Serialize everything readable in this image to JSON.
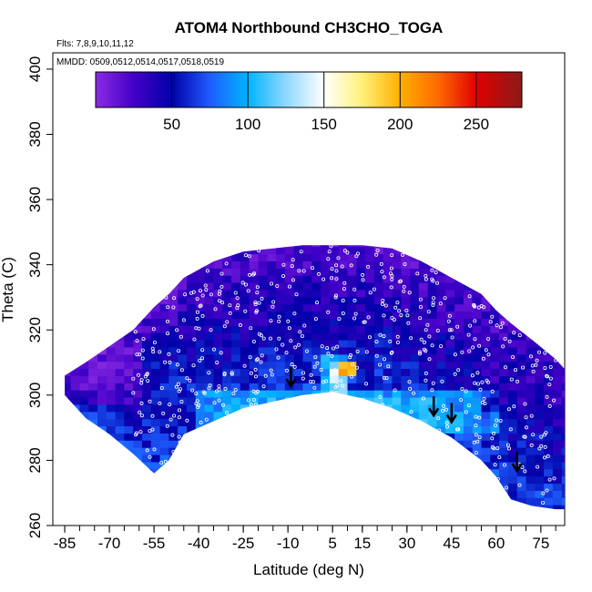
{
  "chart_data": {
    "type": "heatmap",
    "title": "ATOM4 Northbound CH3CHO_TOGA",
    "subtitle_flights": "Flts: 7,8,9,10,11,12",
    "subtitle_dates": "MMDD: 0509,0512,0514,0517,0518,0519",
    "xlabel": "Latitude (deg N)",
    "ylabel": "Theta (C)",
    "xlim": [
      -89,
      83
    ],
    "ylim": [
      260,
      405
    ],
    "x_ticks": [
      -85,
      -70,
      -55,
      -40,
      -25,
      -10,
      5,
      15,
      30,
      45,
      60,
      75
    ],
    "x_tick_labels": [
      "-85",
      "-70",
      "-55",
      "-40",
      "-25",
      "-10",
      "5",
      "15",
      "30",
      "45",
      "60",
      "75"
    ],
    "y_ticks": [
      260,
      280,
      300,
      320,
      340,
      360,
      380,
      400
    ],
    "y_tick_labels": [
      "260",
      "280",
      "300",
      "320",
      "340",
      "360",
      "380",
      "400"
    ],
    "colorbar": {
      "range": [
        0,
        280
      ],
      "ticks": [
        50,
        100,
        150,
        200,
        250
      ],
      "tick_labels": [
        "50",
        "100",
        "150",
        "200",
        "250"
      ],
      "stops": [
        {
          "v": 0,
          "c": "#8a2be2"
        },
        {
          "v": 25,
          "c": "#4400c8"
        },
        {
          "v": 50,
          "c": "#0000a8"
        },
        {
          "v": 75,
          "c": "#1f5cff"
        },
        {
          "v": 100,
          "c": "#00b4ff"
        },
        {
          "v": 125,
          "c": "#8fd8ff"
        },
        {
          "v": 150,
          "c": "#ffffff"
        },
        {
          "v": 175,
          "c": "#fff07a"
        },
        {
          "v": 200,
          "c": "#ffb000"
        },
        {
          "v": 225,
          "c": "#ff6a00"
        },
        {
          "v": 250,
          "c": "#e00000"
        },
        {
          "v": 280,
          "c": "#8b1a1a"
        }
      ]
    },
    "field_envelope": [
      {
        "lat": -85,
        "top": 306,
        "bottom": 300
      },
      {
        "lat": -78,
        "top": 310,
        "bottom": 293
      },
      {
        "lat": -70,
        "top": 315,
        "bottom": 288
      },
      {
        "lat": -62,
        "top": 320,
        "bottom": 282
      },
      {
        "lat": -55,
        "top": 327,
        "bottom": 276
      },
      {
        "lat": -50,
        "top": 331,
        "bottom": 280
      },
      {
        "lat": -45,
        "top": 336,
        "bottom": 288
      },
      {
        "lat": -35,
        "top": 341,
        "bottom": 292
      },
      {
        "lat": -25,
        "top": 344,
        "bottom": 296
      },
      {
        "lat": -15,
        "top": 345,
        "bottom": 298
      },
      {
        "lat": -5,
        "top": 346,
        "bottom": 300
      },
      {
        "lat": 5,
        "top": 346,
        "bottom": 301
      },
      {
        "lat": 15,
        "top": 346,
        "bottom": 299
      },
      {
        "lat": 25,
        "top": 345,
        "bottom": 296
      },
      {
        "lat": 35,
        "top": 341,
        "bottom": 292
      },
      {
        "lat": 45,
        "top": 336,
        "bottom": 287
      },
      {
        "lat": 55,
        "top": 331,
        "bottom": 280
      },
      {
        "lat": 60,
        "top": 326,
        "bottom": 275
      },
      {
        "lat": 65,
        "top": 322,
        "bottom": 268
      },
      {
        "lat": 72,
        "top": 317,
        "bottom": 266
      },
      {
        "lat": 80,
        "top": 311,
        "bottom": 265
      },
      {
        "lat": 83,
        "top": 308,
        "bottom": 265
      }
    ],
    "features": [
      {
        "lat_min": -60,
        "lat_max": -40,
        "theta_min": 286,
        "theta_max": 320,
        "value": 55
      },
      {
        "lat_min": -40,
        "lat_max": 60,
        "theta_min": 288,
        "theta_max": 302,
        "value": 115
      },
      {
        "lat_min": 2,
        "lat_max": 10,
        "theta_min": 300,
        "theta_max": 312,
        "value": 140
      },
      {
        "lat_min": 6,
        "lat_max": 14,
        "theta_min": 306,
        "theta_max": 311,
        "value": 230
      },
      {
        "lat_min": -85,
        "lat_max": -58,
        "theta_min": 298,
        "theta_max": 318,
        "value": 10
      },
      {
        "lat_min": 55,
        "lat_max": 83,
        "theta_min": 295,
        "theta_max": 320,
        "value": 35
      }
    ],
    "arrows": [
      {
        "lat": -9,
        "theta": 303
      },
      {
        "lat": 39,
        "theta": 294
      },
      {
        "lat": 45,
        "theta": 292
      },
      {
        "lat": 67,
        "theta": 277
      }
    ]
  }
}
